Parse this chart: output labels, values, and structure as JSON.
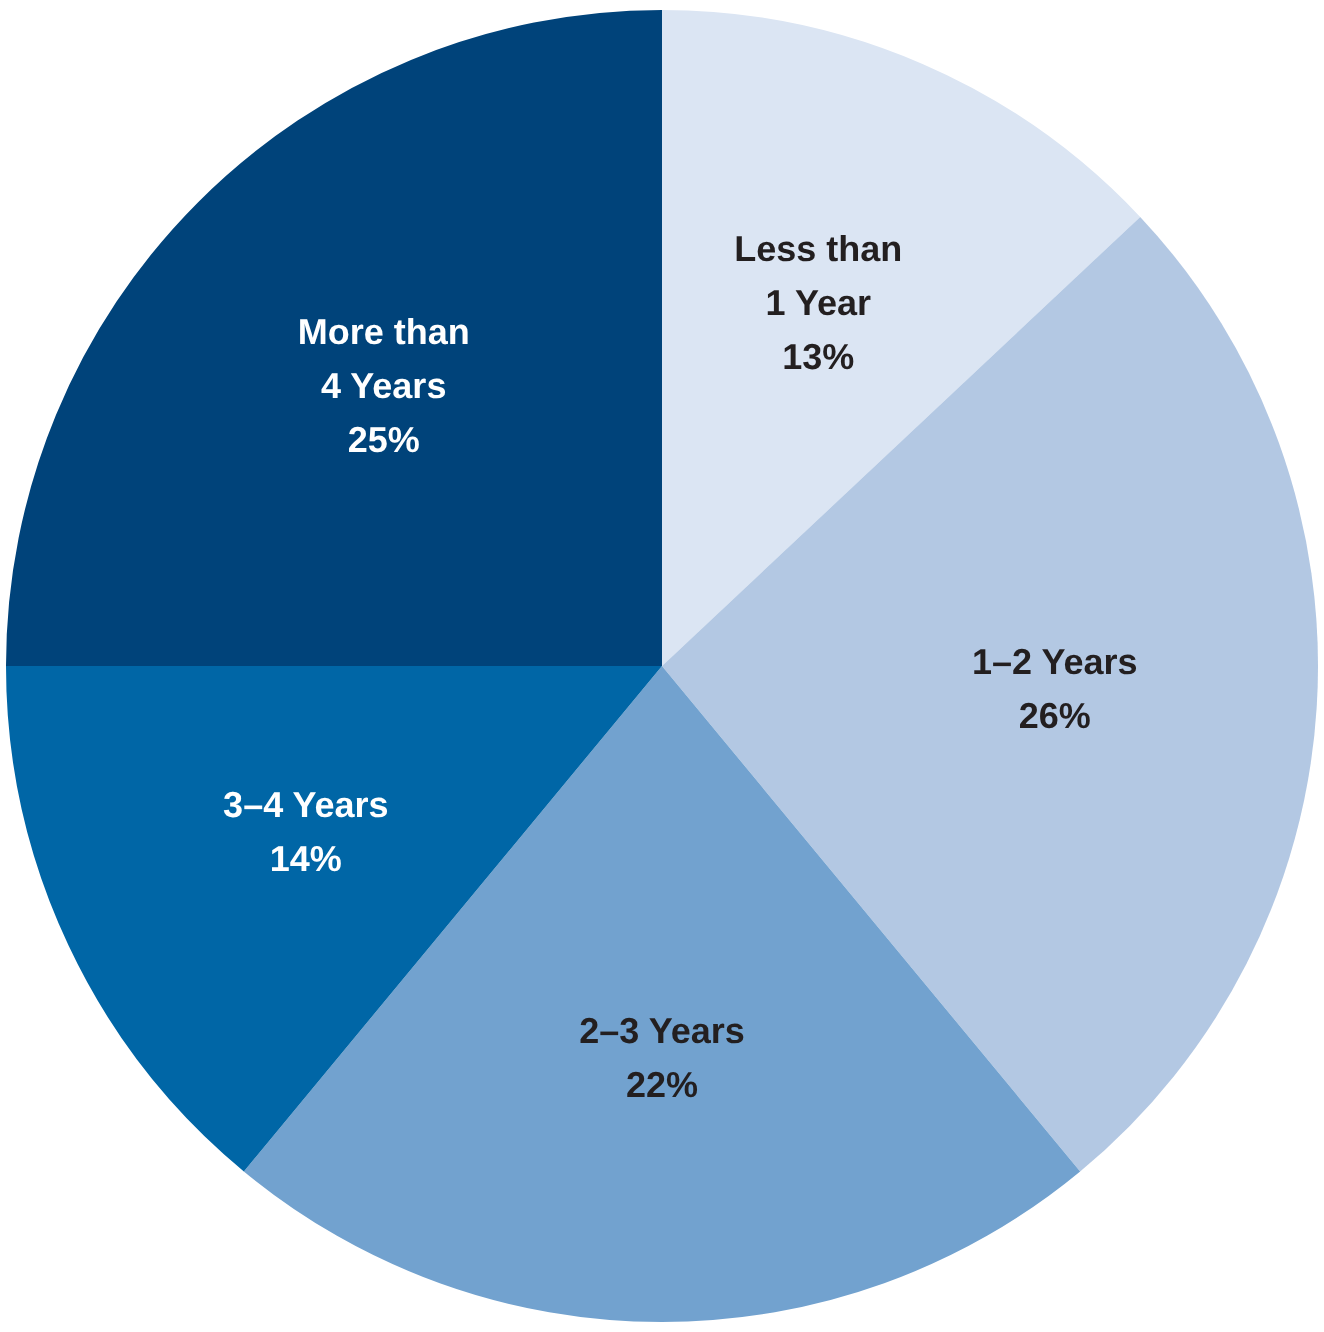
{
  "chart_data": {
    "type": "pie",
    "categories": [
      "Less than 1 Year",
      "1–2 Years",
      "2–3 Years",
      "3–4 Years",
      "More than 4 Years"
    ],
    "values": [
      13,
      26,
      22,
      14,
      25
    ],
    "colors": [
      "#dbe5f3",
      "#b3c8e3",
      "#72a2cf",
      "#0066a6",
      "#00437a"
    ],
    "value_labels": [
      "13%",
      "26%",
      "22%",
      "14%",
      "25%"
    ]
  }
}
